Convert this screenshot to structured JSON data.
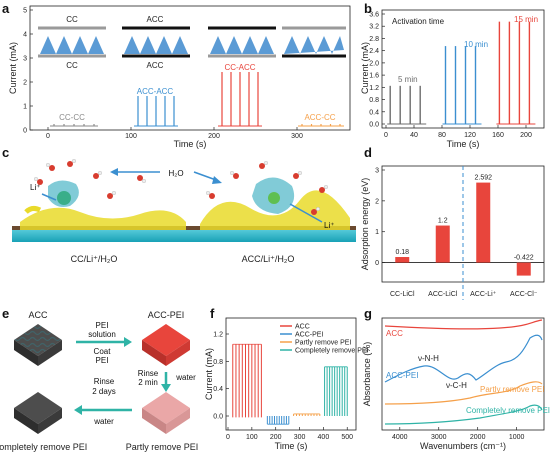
{
  "panels": {
    "a": "a",
    "b": "b",
    "c": "c",
    "d": "d",
    "e": "e",
    "f": "f",
    "g": "g"
  },
  "a": {
    "ylabel": "Current (mA)",
    "xlabel": "Time (s)",
    "xticks": [
      "0",
      "100",
      "200",
      "300"
    ],
    "yticks": [
      "0",
      "1",
      "2",
      "3",
      "4",
      "5"
    ],
    "schematics": [
      {
        "top": "CC",
        "bottom": "CC"
      },
      {
        "top": "ACC",
        "bottom": "ACC"
      },
      {
        "top": "",
        "bottom": ""
      },
      {
        "top": "",
        "bottom": ""
      }
    ],
    "labels": [
      "CC-CC",
      "ACC-ACC",
      "CC-ACC",
      "ACC-CC"
    ],
    "colors": [
      "#8a8a8a",
      "#3b8fd0",
      "#e8453c",
      "#f5a04a"
    ]
  },
  "b": {
    "title": "Activation time",
    "ylabel": "Current (mA)",
    "xlabel": "Time (s)",
    "xticks": [
      "0",
      "40",
      "80",
      "120",
      "160",
      "200"
    ],
    "yticks": [
      "0.0",
      "0.4",
      "0.8",
      "1.2",
      "1.6",
      "2.0",
      "2.4",
      "2.8",
      "3.2",
      "3.6"
    ],
    "groups": [
      {
        "label": "5 min",
        "color": "#6e6e6e",
        "peak": 1.25
      },
      {
        "label": "10 min",
        "color": "#3b8fd0",
        "peak": 2.55
      },
      {
        "label": "15 min",
        "color": "#e8453c",
        "peak": 3.35
      }
    ]
  },
  "c": {
    "label_left": "CC/Li⁺/H₂O",
    "label_right": "ACC/Li⁺/H₂O",
    "h2o": "H₂O",
    "li_left": "Li⁺",
    "li_right": "Li⁺"
  },
  "chart_data": [
    {
      "type": "bar",
      "title": "",
      "ylabel": "Adsorption energy (eV)",
      "categories": [
        "CC-LiCl",
        "ACC-LiCl",
        "ACC-Li⁺",
        "ACC-Cl⁻"
      ],
      "values": [
        0.18,
        1.2,
        2.592,
        -0.422
      ],
      "value_labels": [
        "0.18",
        "1.2",
        "2.592",
        "-0.422"
      ],
      "ylim": [
        -0.5,
        3.0
      ],
      "yticks": [
        "0",
        "1",
        "2",
        "3"
      ],
      "color": "#e8453c"
    }
  ],
  "e": {
    "acc": "ACC",
    "acc_pei": "ACC-PEI",
    "step1_top": "PEI",
    "step1_top2": "solution",
    "step1_bot": "Coat",
    "step1_bot2": "PEI",
    "step2_left": "Rinse",
    "step2_left2": "2 min",
    "step2_right": "water",
    "step3_top": "Rinse",
    "step3_top2": "2 days",
    "step3_bot": "water",
    "partly": "Partly remove PEI",
    "complete": "Completely remove PEI"
  },
  "f": {
    "ylabel": "Current (mA)",
    "xlabel": "Time (s)",
    "xticks": [
      "0",
      "100",
      "200",
      "300",
      "400",
      "500"
    ],
    "yticks": [
      "0.0",
      "0.4",
      "0.8",
      "1.2"
    ],
    "legend": [
      {
        "name": "ACC",
        "color": "#e8453c"
      },
      {
        "name": "ACC-PEI",
        "color": "#3b8fd0"
      },
      {
        "name": "Partly remove PEI",
        "color": "#f5a04a"
      },
      {
        "name": "Completely remove PEI",
        "color": "#2fb3a6"
      }
    ]
  },
  "g": {
    "ylabel": "Absorbance (%)",
    "xlabel": "Wavenumbers (cm⁻¹)",
    "xticks": [
      "4000",
      "3000",
      "2000",
      "1000"
    ],
    "curves": [
      {
        "name": "ACC",
        "color": "#e8453c"
      },
      {
        "name": "ACC-PEI",
        "color": "#3b8fd0"
      },
      {
        "name": "Partly remove PEI",
        "color": "#f5a04a"
      },
      {
        "name": "Completely remove PEI",
        "color": "#2fb3a6"
      }
    ],
    "ann1": "ν-N-H",
    "ann2": "ν-C-H"
  }
}
